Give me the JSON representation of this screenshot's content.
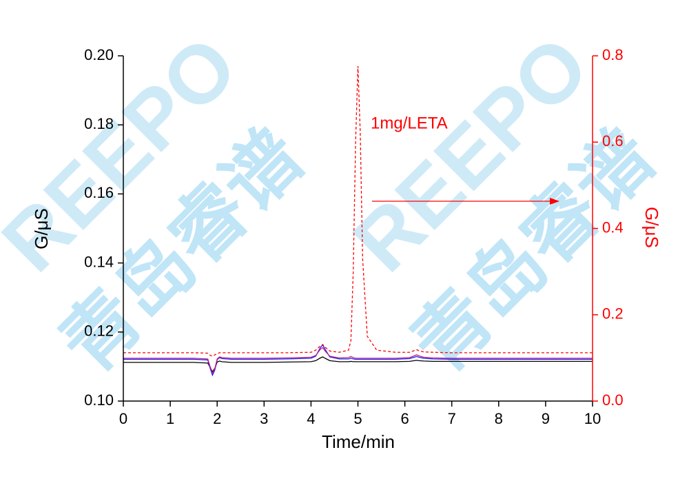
{
  "chart_data": {
    "type": "line",
    "x": [
      0,
      0.5,
      1,
      1.5,
      1.8,
      1.85,
      1.9,
      1.95,
      2.0,
      2.05,
      2.1,
      2.3,
      3,
      3.5,
      4,
      4.1,
      4.2,
      4.25,
      4.3,
      4.4,
      4.6,
      4.8,
      4.85,
      4.9,
      4.95,
      5.0,
      5.05,
      5.1,
      5.2,
      5.4,
      5.8,
      6.1,
      6.2,
      6.25,
      6.3,
      6.4,
      6.6,
      7,
      8,
      9,
      10
    ],
    "series": [
      {
        "color": "#000000",
        "values": [
          0.1112,
          0.1112,
          0.1112,
          0.1112,
          0.111,
          0.1098,
          0.1085,
          0.1095,
          0.1113,
          0.1116,
          0.1114,
          0.1112,
          0.1112,
          0.1113,
          0.1114,
          0.1117,
          0.1125,
          0.1128,
          0.1124,
          0.1117,
          0.1114,
          0.1114,
          0.1115,
          0.1114,
          0.1114,
          0.1114,
          0.1114,
          0.1114,
          0.1114,
          0.1114,
          0.1114,
          0.1115,
          0.1117,
          0.1118,
          0.1117,
          0.1116,
          0.1115,
          0.1115,
          0.1115,
          0.1115,
          0.1115
        ]
      },
      {
        "color": "#1a1aff",
        "values": [
          0.1121,
          0.1121,
          0.1121,
          0.1121,
          0.1119,
          0.1095,
          0.1075,
          0.109,
          0.112,
          0.1126,
          0.1123,
          0.1121,
          0.1121,
          0.1122,
          0.1124,
          0.113,
          0.1155,
          0.1163,
          0.115,
          0.1128,
          0.1122,
          0.1122,
          0.1124,
          0.1122,
          0.1121,
          0.1121,
          0.1121,
          0.1121,
          0.1121,
          0.1121,
          0.1121,
          0.1123,
          0.1127,
          0.1129,
          0.1127,
          0.1124,
          0.1122,
          0.1121,
          0.1121,
          0.1121,
          0.1121
        ]
      },
      {
        "color": "#c0207a",
        "values": [
          0.1124,
          0.1124,
          0.1124,
          0.1124,
          0.1122,
          0.11,
          0.108,
          0.1094,
          0.1122,
          0.1128,
          0.1126,
          0.1124,
          0.1124,
          0.1125,
          0.1127,
          0.1132,
          0.115,
          0.1155,
          0.1145,
          0.113,
          0.1125,
          0.1126,
          0.1129,
          0.1126,
          0.1124,
          0.1124,
          0.1124,
          0.1124,
          0.1124,
          0.1124,
          0.1124,
          0.1126,
          0.1131,
          0.1134,
          0.1131,
          0.1127,
          0.1125,
          0.1124,
          0.1124,
          0.1124,
          0.1124
        ]
      },
      {
        "color": "#ff0000",
        "axis": "y2",
        "dashed": true,
        "values": [
          0.112,
          0.112,
          0.112,
          0.112,
          0.111,
          0.106,
          0.104,
          0.107,
          0.11,
          0.112,
          0.112,
          0.112,
          0.112,
          0.112,
          0.113,
          0.118,
          0.128,
          0.131,
          0.125,
          0.116,
          0.113,
          0.118,
          0.14,
          0.3,
          0.6,
          0.776,
          0.62,
          0.33,
          0.15,
          0.118,
          0.113,
          0.113,
          0.117,
          0.119,
          0.117,
          0.114,
          0.113,
          0.112,
          0.112,
          0.112,
          0.112
        ]
      }
    ],
    "xlabel": "Time/min",
    "ylabel": "G/μS",
    "y2label": "G/μS",
    "xlim": [
      0,
      10
    ],
    "xticks": [
      0,
      1,
      2,
      3,
      4,
      5,
      6,
      7,
      8,
      9,
      10
    ],
    "ylim": [
      0.1,
      0.2
    ],
    "yticks": [
      {
        "value": 0.1,
        "label": "0.10"
      },
      0.12,
      0.14,
      0.16,
      0.18,
      {
        "value": 0.2,
        "label": "0.20"
      }
    ],
    "y2lim": [
      0,
      0.8
    ],
    "y2ticks": [
      {
        "value": 0,
        "label": "0.0"
      },
      0.2,
      0.4,
      0.6,
      0.8
    ],
    "y2color": "#ff0000",
    "annotation": "1mg/LETA",
    "watermark": {
      "latin": "REEPO",
      "cjk": "青岛睿谱"
    }
  }
}
